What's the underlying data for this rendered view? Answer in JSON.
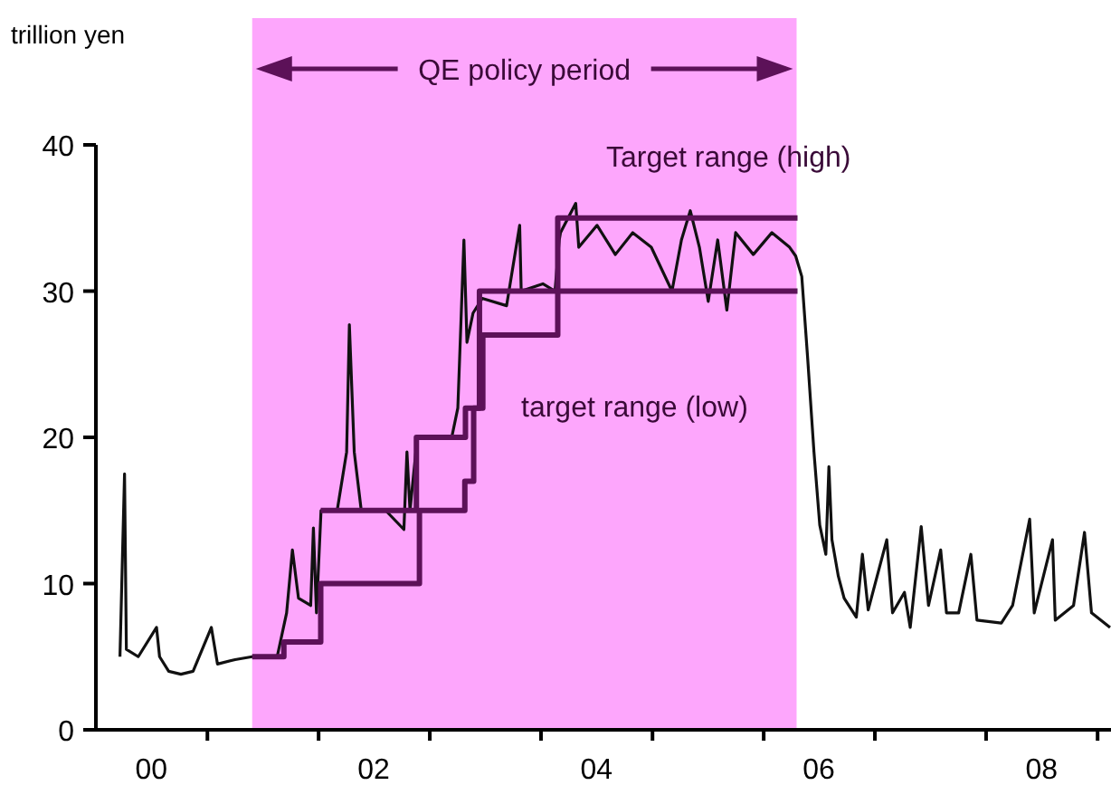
{
  "chart_data": {
    "type": "line",
    "ylabel": "trillion yen",
    "xlim": [
      "2000-01-01",
      "2009-02-14"
    ],
    "ylim": [
      0,
      40
    ],
    "yticks": [
      0,
      10,
      20,
      30,
      40
    ],
    "xticks": [
      {
        "value": "2001-01-01",
        "label": null
      },
      {
        "value": "2002-01-01",
        "label": null
      },
      {
        "value": "2003-01-01",
        "label": null
      },
      {
        "value": "2004-01-01",
        "label": null
      },
      {
        "value": "2005-01-01",
        "label": null
      },
      {
        "value": "2006-01-01",
        "label": null
      },
      {
        "value": "2007-01-01",
        "label": null
      },
      {
        "value": "2008-01-01",
        "label": null
      },
      {
        "value": "2009-01-01",
        "label": null
      },
      {
        "value": "2000-07-01",
        "label": "00"
      },
      {
        "value": "2002-07-01",
        "label": "02"
      },
      {
        "value": "2004-07-01",
        "label": "04"
      },
      {
        "value": "2006-07-01",
        "label": "06"
      },
      {
        "value": "2008-07-01",
        "label": "08"
      }
    ],
    "bands": [
      {
        "axis": "x",
        "from": "2001-05-28",
        "to": "2006-04-19",
        "label": "QE policy period",
        "color": "#fda6fc"
      }
    ],
    "annotations": [
      "Target range (high)",
      "target range (low)"
    ],
    "series": [
      {
        "color": "#111111",
        "x": [
          "2000-03-20",
          "2000-04-04",
          "2000-04-10",
          "2000-05-19",
          "2000-07-18",
          "2000-07-28",
          "2000-08-27",
          "2000-10-06",
          "2000-11-15",
          "2001-01-14",
          "2001-02-03",
          "2001-04-02",
          "2001-05-28",
          "2001-08-18",
          "2001-09-18",
          "2001-10-07",
          "2001-10-27",
          "2001-12-06",
          "2001-12-15",
          "2001-12-25",
          "2002-01-09",
          "2002-03-03",
          "2002-04-03",
          "2002-04-12",
          "2002-04-28",
          "2002-05-21",
          "2002-08-09",
          "2002-10-08",
          "2002-10-18",
          "2002-10-28",
          "2002-11-21",
          "2003-03-14",
          "2003-04-03",
          "2003-04-23",
          "2003-05-03",
          "2003-05-23",
          "2003-06-22",
          "2003-09-10",
          "2003-10-23",
          "2003-10-28",
          "2004-01-07",
          "2004-02-16",
          "2004-03-01",
          "2004-03-05",
          "2004-04-24",
          "2004-05-04",
          "2004-07-03",
          "2004-09-01",
          "2004-10-28",
          "2004-12-28",
          "2005-03-06",
          "2005-04-06",
          "2005-05-05",
          "2005-06-04",
          "2005-07-03",
          "2005-08-03",
          "2005-09-02",
          "2005-10-01",
          "2005-11-28",
          "2006-01-28",
          "2006-03-27",
          "2006-04-16",
          "2006-05-06",
          "2006-05-25",
          "2006-06-15",
          "2006-07-04",
          "2006-07-24",
          "2006-08-03",
          "2006-08-13",
          "2006-09-03",
          "2006-09-22",
          "2006-11-01",
          "2006-11-21",
          "2006-12-10",
          "2007-02-09",
          "2007-02-28",
          "2007-04-08",
          "2007-04-27",
          "2007-06-02",
          "2007-06-26",
          "2007-08-05",
          "2007-08-24",
          "2007-10-03",
          "2007-11-12",
          "2007-12-02",
          "2008-02-20",
          "2008-03-28",
          "2008-05-23",
          "2008-06-07",
          "2008-08-06",
          "2008-08-15",
          "2008-10-14",
          "2008-11-19",
          "2008-12-12",
          "2009-02-11"
        ],
        "values": [
          5,
          17.5,
          5.5,
          5,
          7,
          5,
          4,
          3.8,
          4,
          7,
          4.5,
          4.8,
          5,
          5,
          8,
          12.3,
          9,
          8.5,
          13.8,
          8,
          15,
          15,
          19,
          27.7,
          19,
          15,
          15,
          13.7,
          19,
          15,
          20,
          20,
          22,
          33.5,
          26.5,
          28.5,
          29.5,
          29,
          34.5,
          30,
          30.5,
          30,
          33.5,
          34,
          36,
          33,
          34.5,
          32.5,
          34,
          33,
          30,
          33.5,
          35.5,
          33,
          29.3,
          33.5,
          28.7,
          34,
          32.5,
          34,
          33,
          32.4,
          31,
          25.5,
          19,
          14,
          12,
          18,
          13,
          10.5,
          9,
          7.7,
          12,
          8.2,
          13,
          8,
          9.4,
          7,
          13.9,
          8.5,
          12.3,
          8,
          8,
          12,
          7.5,
          7.3,
          8.5,
          14.4,
          8,
          13,
          7.5,
          8.5,
          13.5,
          8,
          7
        ]
      },
      {
        "type": "step",
        "color": "#5c1158",
        "x": [
          "2002-01-08",
          "2002-11-18",
          "2003-04-28",
          "2003-06-13",
          "2004-02-25",
          "2006-04-22"
        ],
        "values": [
          15,
          20,
          22,
          30,
          35,
          35
        ]
      },
      {
        "type": "step",
        "color": "#5c1158",
        "x": [
          "2001-05-28",
          "2001-09-09",
          "2002-01-08",
          "2002-11-28",
          "2003-04-26",
          "2003-05-25",
          "2003-06-24",
          "2004-02-25",
          "2006-04-22"
        ],
        "values": [
          5,
          6,
          10,
          15,
          17,
          22,
          27,
          30,
          30
        ]
      }
    ]
  }
}
